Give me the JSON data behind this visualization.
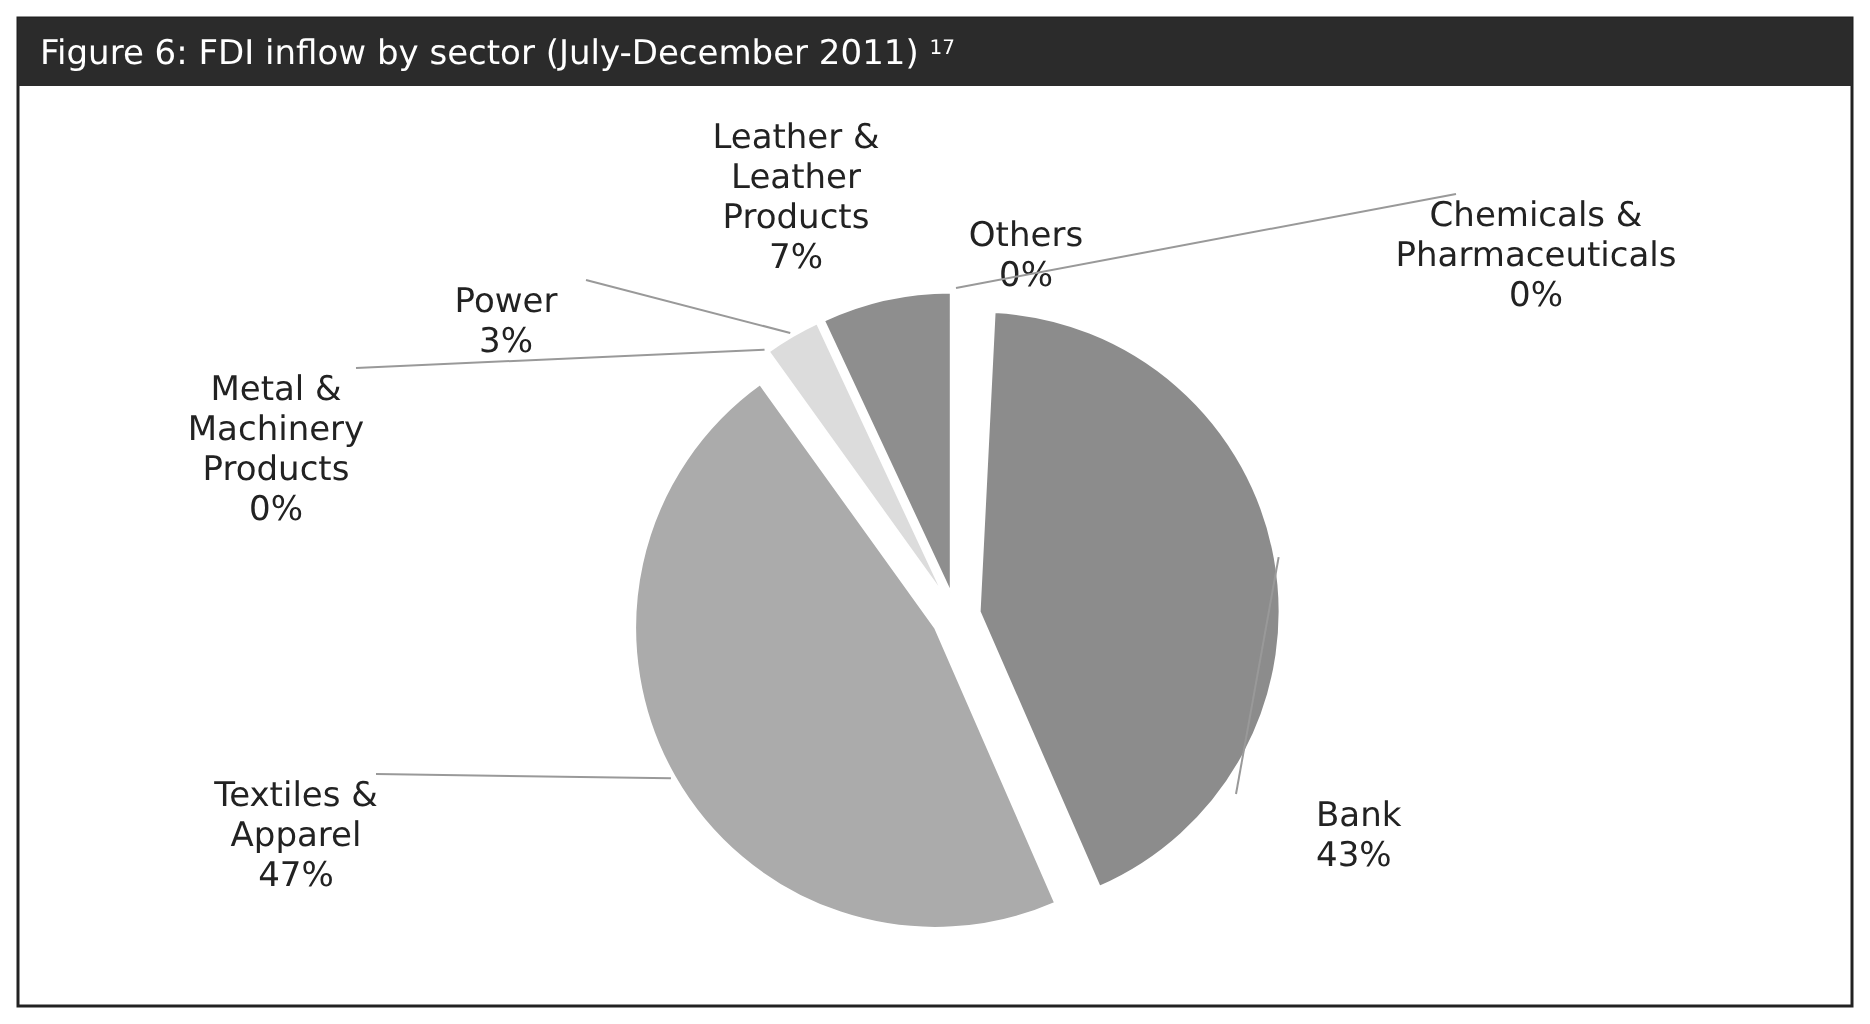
{
  "chart_data": {
    "type": "pie",
    "title": "Figure 6: FDI inflow by sector (July-December 2011) $^{17}$",
    "categories": [
      "Bank",
      "Textiles & Apparel",
      "Metal & Machinery Products",
      "Power",
      "Leather & Leather Products",
      "Others",
      "Chemicals & Pharmaceuticals"
    ],
    "values": [
      43,
      47,
      0,
      3,
      7,
      0,
      0
    ],
    "value_labels": [
      "43%",
      "47%",
      "0%",
      "3%",
      "7%",
      "0%",
      "0%"
    ],
    "colors": [
      "#8c8c8c",
      "#ababab",
      "#c4c4c4",
      "#dcdcdc",
      "#8e8e8e",
      "#a6a6a6",
      "#bdbdbd"
    ]
  }
}
